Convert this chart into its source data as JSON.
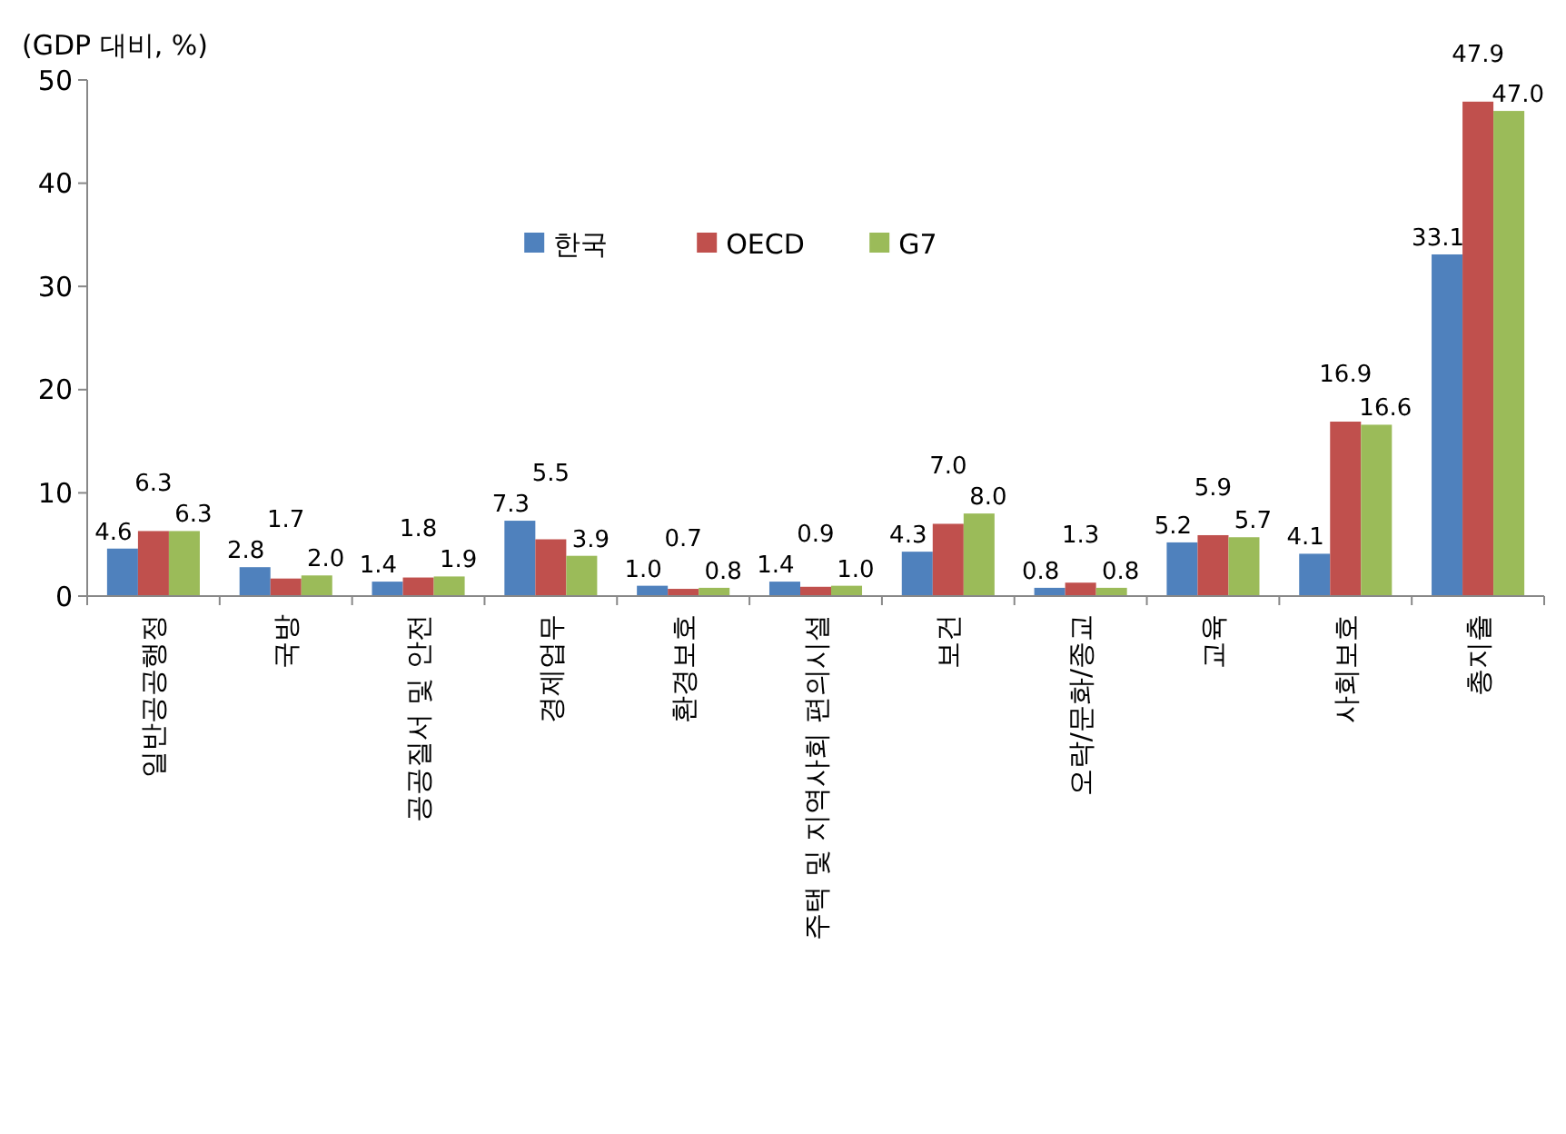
{
  "chart_data": {
    "type": "bar",
    "ylabel": "(GDP 대비, %)",
    "categories": [
      "일반공공행정",
      "국방",
      "공공질서 및 안전",
      "경제업무",
      "환경보호",
      "주택 및 지역사회 편의시설",
      "보건",
      "오락/문화/종교",
      "교육",
      "사회보호",
      "총지출"
    ],
    "series": [
      {
        "name": "한국",
        "color": "#4f81bd",
        "values": [
          4.6,
          2.8,
          1.4,
          7.3,
          1.0,
          1.4,
          4.3,
          0.8,
          5.2,
          4.1,
          33.1
        ],
        "value_labels": [
          "4.6",
          "2.8",
          "1.4",
          "7.3",
          "1.0",
          "1.4",
          "4.3",
          "0.8",
          "5.2",
          "4.1",
          "33.1"
        ]
      },
      {
        "name": "OECD",
        "color": "#c0504d",
        "values": [
          6.3,
          1.7,
          1.8,
          5.5,
          0.7,
          0.9,
          7.0,
          1.3,
          5.9,
          16.9,
          47.9
        ],
        "value_labels": [
          "6.3",
          "1.7",
          "1.8",
          "5.5",
          "0.7",
          "0.9",
          "7.0",
          "1.3",
          "5.9",
          "16.9",
          "47.9"
        ]
      },
      {
        "name": "G7",
        "color": "#9bbb59",
        "values": [
          6.3,
          2.0,
          1.9,
          3.9,
          0.8,
          1.0,
          8.0,
          0.8,
          5.7,
          16.6,
          47.0
        ],
        "value_labels": [
          "6.3",
          "2.0",
          "1.9",
          "3.9",
          "0.8",
          "1.0",
          "8.0",
          "0.8",
          "5.7",
          "16.6",
          "47.0"
        ]
      }
    ],
    "ylim": [
      0,
      50
    ],
    "yticks": [
      0,
      10,
      20,
      30,
      40,
      50
    ],
    "grid": false,
    "legend": "top"
  }
}
